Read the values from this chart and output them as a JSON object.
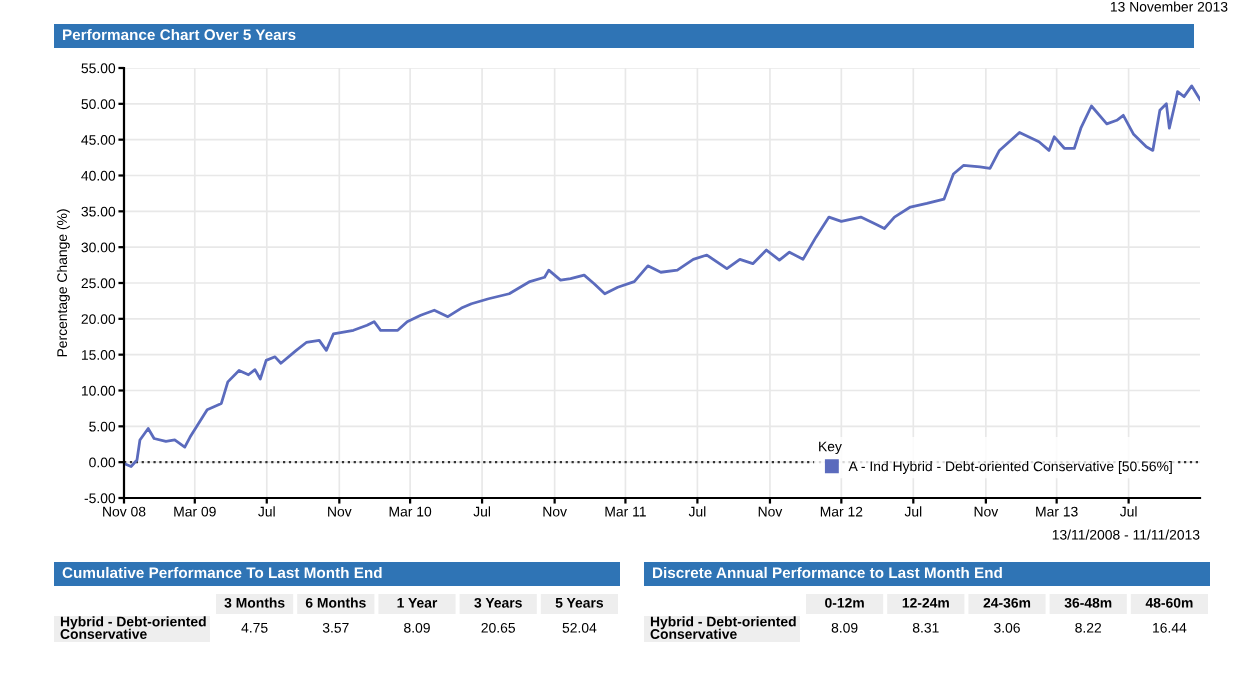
{
  "chart_data": [
    {
      "type": "line",
      "title": "Performance Chart Over 5 Years",
      "ylabel": "Percentage Change (%)",
      "legend_title": "Key",
      "annotations": [
        "13 November 2013",
        "13/11/2008 - 11/11/2013"
      ],
      "x": [
        "2008-11-13",
        "2008-11-25",
        "2008-12-05",
        "2008-12-10",
        "2008-12-24",
        "2009-01-03",
        "2009-01-23",
        "2009-02-07",
        "2009-02-24",
        "2009-03-05",
        "2009-04-03",
        "2009-04-27",
        "2009-05-08",
        "2009-05-27",
        "2009-06-12",
        "2009-06-23",
        "2009-07-02",
        "2009-07-12",
        "2009-07-27",
        "2009-08-06",
        "2009-09-01",
        "2009-09-18",
        "2009-10-10",
        "2009-10-22",
        "2009-11-03",
        "2009-12-07",
        "2009-12-30",
        "2010-01-11",
        "2010-01-22",
        "2010-02-20",
        "2010-03-08",
        "2010-03-31",
        "2010-04-23",
        "2010-05-16",
        "2010-06-08",
        "2010-06-25",
        "2010-07-24",
        "2010-08-28",
        "2010-10-02",
        "2010-10-27",
        "2010-11-03",
        "2010-11-23",
        "2010-12-10",
        "2011-01-02",
        "2011-01-19",
        "2011-02-06",
        "2011-02-28",
        "2011-03-28",
        "2011-04-20",
        "2011-05-12",
        "2011-06-09",
        "2011-07-06",
        "2011-07-29",
        "2011-09-01",
        "2011-09-23",
        "2011-10-15",
        "2011-11-07",
        "2011-11-29",
        "2011-12-16",
        "2012-01-08",
        "2012-01-30",
        "2012-02-21",
        "2012-03-13",
        "2012-04-15",
        "2012-05-08",
        "2012-05-25",
        "2012-06-11",
        "2012-07-08",
        "2012-08-05",
        "2012-09-03",
        "2012-09-19",
        "2012-10-06",
        "2012-11-03",
        "2012-11-20",
        "2012-12-06",
        "2013-01-09",
        "2013-02-11",
        "2013-02-28",
        "2013-03-09",
        "2013-03-26",
        "2013-04-12",
        "2013-04-23",
        "2013-05-11",
        "2013-06-06",
        "2013-06-23",
        "2013-07-04",
        "2013-07-21",
        "2013-08-12",
        "2013-08-23",
        "2013-09-04",
        "2013-09-15",
        "2013-09-20",
        "2013-10-01",
        "2013-10-04",
        "2013-10-15",
        "2013-10-28",
        "2013-11-11"
      ],
      "series": [
        {
          "name": "A - Ind Hybrid - Debt-oriented Conservative [50.56%]",
          "color": "#5b6bbd",
          "values": [
            -0.2,
            -0.6,
            0.3,
            3.1,
            4.7,
            3.3,
            2.9,
            3.1,
            2.1,
            3.5,
            7.3,
            8.2,
            11.2,
            12.8,
            12.2,
            12.9,
            11.6,
            14.2,
            14.7,
            13.8,
            15.6,
            16.7,
            17.0,
            15.6,
            17.9,
            18.4,
            19.1,
            19.6,
            18.4,
            18.4,
            19.6,
            20.5,
            21.2,
            20.3,
            21.5,
            22.1,
            22.8,
            23.5,
            25.2,
            25.8,
            26.8,
            25.4,
            25.6,
            26.1,
            24.9,
            23.5,
            24.4,
            25.2,
            27.4,
            26.5,
            26.8,
            28.3,
            28.9,
            27.0,
            28.3,
            27.7,
            29.6,
            28.2,
            29.3,
            28.3,
            31.4,
            34.2,
            33.6,
            34.2,
            33.3,
            32.6,
            34.2,
            35.6,
            36.1,
            36.7,
            40.2,
            41.4,
            41.2,
            41.0,
            43.5,
            46.0,
            44.7,
            43.5,
            45.4,
            43.8,
            43.8,
            46.6,
            49.7,
            47.2,
            47.7,
            48.4,
            45.8,
            44.0,
            43.5,
            49.1,
            50.0,
            46.6,
            50.5,
            51.7,
            51.0,
            52.5,
            50.6
          ]
        }
      ],
      "xlim": [
        "2008-11-13",
        "2013-11-11"
      ],
      "xticks": [
        {
          "value": "2008-11-13",
          "label": "Nov 08"
        },
        {
          "value": "2009-03-13",
          "label": "Mar 09"
        },
        {
          "value": "2009-07-13",
          "label": "Jul"
        },
        {
          "value": "2009-11-13",
          "label": "Nov"
        },
        {
          "value": "2010-03-13",
          "label": "Mar 10"
        },
        {
          "value": "2010-07-13",
          "label": "Jul"
        },
        {
          "value": "2010-11-13",
          "label": "Nov"
        },
        {
          "value": "2011-03-13",
          "label": "Mar 11"
        },
        {
          "value": "2011-07-13",
          "label": "Jul"
        },
        {
          "value": "2011-11-13",
          "label": "Nov"
        },
        {
          "value": "2012-03-13",
          "label": "Mar 12"
        },
        {
          "value": "2012-07-13",
          "label": "Jul"
        },
        {
          "value": "2012-11-13",
          "label": "Nov"
        },
        {
          "value": "2013-03-13",
          "label": "Mar 13"
        },
        {
          "value": "2013-07-13",
          "label": "Jul"
        }
      ],
      "ylim": [
        -5,
        55
      ],
      "yticks": [
        {
          "value": -5,
          "label": "-5.00"
        },
        {
          "value": 0,
          "label": "0.00"
        },
        {
          "value": 5,
          "label": "5.00"
        },
        {
          "value": 10,
          "label": "10.00"
        },
        {
          "value": 15,
          "label": "15.00"
        },
        {
          "value": 20,
          "label": "20.00"
        },
        {
          "value": 25,
          "label": "25.00"
        },
        {
          "value": 30,
          "label": "30.00"
        },
        {
          "value": 35,
          "label": "35.00"
        },
        {
          "value": 40,
          "label": "40.00"
        },
        {
          "value": 45,
          "label": "45.00"
        },
        {
          "value": 50,
          "label": "50.00"
        },
        {
          "value": 55,
          "label": "55.00"
        }
      ],
      "ref_lines": [
        {
          "axis": "y",
          "value": 0,
          "color": "#333333",
          "line_style": "dotted"
        }
      ],
      "grid": true,
      "legend": "bottom right",
      "marker": "none",
      "line_style": "solid"
    },
    {
      "type": "other",
      "title": "Cumulative Performance To Last Month End",
      "categories": [
        "3 Months",
        "6 Months",
        "1 Year",
        "3 Years",
        "5 Years"
      ],
      "y_categories": [
        "Hybrid - Debt-oriented\nConservative"
      ],
      "values": [
        4.75,
        3.57,
        8.09,
        20.65,
        52.04
      ],
      "data_labels": true
    },
    {
      "type": "other",
      "title": "Discrete Annual Performance to Last Month End",
      "categories": [
        "0-12m",
        "12-24m",
        "24-36m",
        "36-48m",
        "48-60m"
      ],
      "y_categories": [
        "Hybrid - Debt-oriented\nConservative"
      ],
      "values": [
        8.09,
        8.31,
        3.06,
        8.22,
        16.44
      ],
      "data_labels": true
    }
  ]
}
